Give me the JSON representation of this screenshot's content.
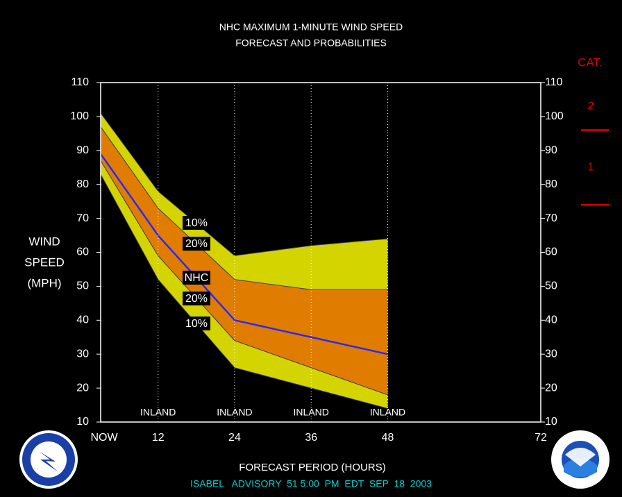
{
  "chart_data": {
    "type": "band",
    "title": "NHC MAXIMUM 1-MINUTE WIND SPEED",
    "subtitle": "FORECAST AND PROBABILITIES",
    "ylabel": [
      "WIND",
      "SPEED",
      "(MPH)"
    ],
    "xlabel": "FORECAST PERIOD (HOURS)",
    "footer": "ISABEL   ADVISORY  51 5:00  PM  EDT  SEP  18  2003",
    "x": [
      3,
      12,
      24,
      36,
      48
    ],
    "series": [
      {
        "name": "10%",
        "color": "#d4d400",
        "values": [
          101,
          78,
          59,
          62,
          64
        ]
      },
      {
        "name": "20%",
        "color": "#e07c00",
        "values": [
          97,
          73,
          52,
          49,
          49
        ]
      },
      {
        "name": "NHC",
        "color": "#2828ff",
        "values": [
          89,
          65,
          40,
          35,
          30
        ]
      },
      {
        "name": "20%",
        "color": "#e07c00",
        "values": [
          87,
          59,
          34,
          26,
          18
        ]
      },
      {
        "name": "10%",
        "color": "#d4d400",
        "values": [
          83,
          52,
          26,
          20,
          14
        ]
      }
    ],
    "xlim": [
      3,
      72
    ],
    "xticks": [
      {
        "value": 3,
        "label": "NOW"
      },
      12,
      24,
      36,
      48,
      72
    ],
    "ylim": [
      10,
      110
    ],
    "yticks": [
      10,
      20,
      30,
      40,
      50,
      60,
      70,
      80,
      90,
      100,
      110
    ],
    "y2lim": [
      10,
      110
    ],
    "y2ticks": [
      10,
      20,
      30,
      40,
      50,
      60,
      70,
      80,
      90,
      100,
      110
    ],
    "annotations": [
      {
        "x": 12,
        "text": "INLAND"
      },
      {
        "x": 24,
        "text": "INLAND"
      },
      {
        "x": 36,
        "text": "INLAND"
      },
      {
        "x": 48,
        "text": "INLAND"
      }
    ],
    "category_scale": {
      "title": "CAT.",
      "color": "#e00000",
      "levels": [
        {
          "label": "1",
          "min": 74
        },
        {
          "label": "2",
          "min": 96
        }
      ]
    }
  }
}
